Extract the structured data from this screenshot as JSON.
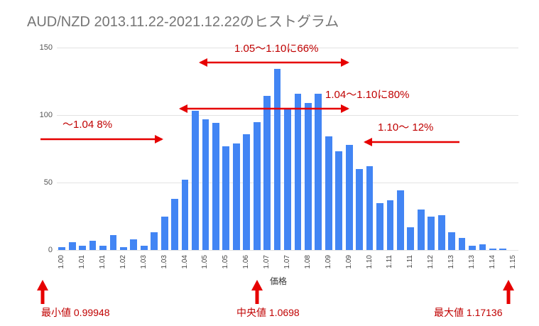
{
  "title": "AUD/NZD 2013.11.22-2021.12.22のヒストグラム",
  "colors": {
    "bar": "#4285f4",
    "grid": "#e3e3e3",
    "annotation_text": "#c00000",
    "arrow": "#e60000",
    "title_text": "#757575"
  },
  "annotations": {
    "range_66": "1.05〜1.10に66%",
    "range_80": "1.04〜1.10に80%",
    "below_104": "〜1.04 8%",
    "above_110": "1.10〜 12%"
  },
  "stats": {
    "min_label": "最小値 0.99948",
    "median_label": "中央値 1.0698",
    "max_label": "最大値 1.17136",
    "min": 0.99948,
    "median": 1.0698,
    "max": 1.17136
  },
  "chart_data": {
    "type": "bar",
    "title": "AUD/NZD 2013.11.22-2021.12.22のヒストグラム",
    "xlabel": "価格",
    "ylabel": "",
    "ylim": [
      0,
      150
    ],
    "yticks": [
      0,
      50,
      100,
      150
    ],
    "grid": true,
    "legend": false,
    "x_tick_labels": [
      "1.00",
      "1.01",
      "1.01",
      "1.02",
      "1.03",
      "1.03",
      "1.04",
      "1.05",
      "1.05",
      "1.06",
      "1.07",
      "1.07",
      "1.08",
      "1.09",
      "1.09",
      "1.10",
      "1.11",
      "1.11",
      "1.12",
      "1.13",
      "1.13",
      "1.14",
      "1.15"
    ],
    "values": [
      2,
      6,
      3,
      7,
      3,
      11,
      2,
      8,
      3,
      13,
      25,
      38,
      52,
      103,
      97,
      94,
      77,
      79,
      86,
      95,
      114,
      134,
      105,
      116,
      109,
      116,
      84,
      73,
      78,
      60,
      62,
      35,
      37,
      44,
      17,
      30,
      25,
      26,
      13,
      9,
      3,
      4,
      1,
      1,
      0
    ],
    "annotations_data": [
      {
        "label": "1.05〜1.10に66%",
        "range_low": 1.05,
        "range_high": 1.1,
        "percent": 66
      },
      {
        "label": "1.04〜1.10に80%",
        "range_low": 1.04,
        "range_high": 1.1,
        "percent": 80
      },
      {
        "label": "〜1.04 8%",
        "range_high": 1.04,
        "percent": 8
      },
      {
        "label": "1.10〜 12%",
        "range_low": 1.1,
        "percent": 12
      }
    ]
  }
}
